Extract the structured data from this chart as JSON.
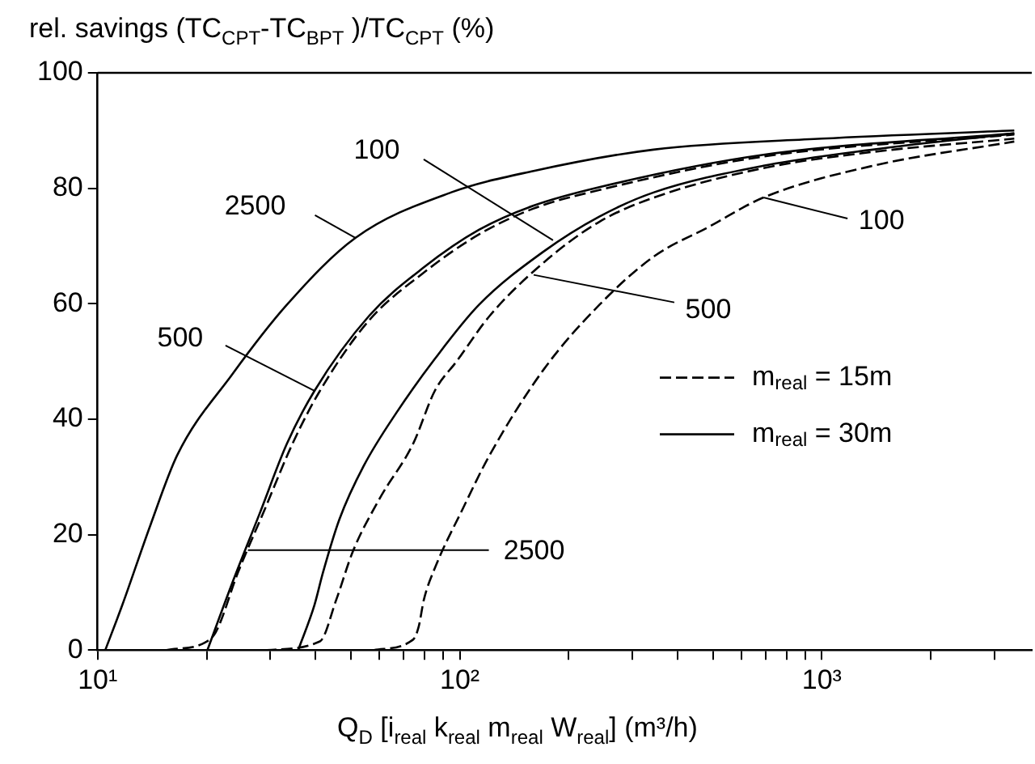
{
  "chart_data": {
    "type": "line",
    "ylabel": "rel. savings (TC$_{CPT}$-TC$_{BPT}$ )/TC$_{CPT}$ (%)",
    "xlabel": "Q$_{D}$ [i$_{real}$ k$_{real}$ m$_{real}$ W$_{real}$] (m³/h)",
    "log": "x",
    "xlim": [
      10,
      3800
    ],
    "xticks": [
      {
        "value": 10,
        "label": "10¹"
      },
      {
        "value": 20,
        "label": null
      },
      {
        "value": 30,
        "label": null
      },
      {
        "value": 40,
        "label": null
      },
      {
        "value": 50,
        "label": null
      },
      {
        "value": 60,
        "label": null
      },
      {
        "value": 70,
        "label": null
      },
      {
        "value": 80,
        "label": null
      },
      {
        "value": 90,
        "label": null
      },
      {
        "value": 100,
        "label": "10²"
      },
      {
        "value": 200,
        "label": null
      },
      {
        "value": 300,
        "label": null
      },
      {
        "value": 400,
        "label": null
      },
      {
        "value": 500,
        "label": null
      },
      {
        "value": 600,
        "label": null
      },
      {
        "value": 700,
        "label": null
      },
      {
        "value": 800,
        "label": null
      },
      {
        "value": 900,
        "label": null
      },
      {
        "value": 1000,
        "label": "10³"
      },
      {
        "value": 2000,
        "label": null
      },
      {
        "value": 3000,
        "label": null
      }
    ],
    "ylim": [
      0,
      100
    ],
    "yticks": [
      0,
      20,
      40,
      60,
      80,
      100
    ],
    "grid": false,
    "legend": "right",
    "marker": "none",
    "series": [
      {
        "name": "m$_{real}$ = 15m",
        "color": "#000000",
        "line_style": "dashed",
        "x": [
          15.5,
          19.8,
          21.2,
          24.4,
          29,
          34.5,
          41.1,
          56,
          80,
          113,
          160,
          243,
          690,
          3400
        ],
        "values": [
          0,
          1.3,
          3.1,
          13.4,
          24.5,
          35.7,
          44.9,
          57,
          65.5,
          72,
          76.5,
          79.7,
          85.5,
          89.3
        ]
      },
      {
        "color": "#000000",
        "line_style": "dashed",
        "x": [
          29,
          41.1,
          45.6,
          50.7,
          60.3,
          74.3,
          85.5,
          98,
          121,
          171,
          243,
          344,
          690,
          1384,
          3400
        ],
        "values": [
          0,
          1.5,
          8.7,
          17.1,
          26.4,
          35.7,
          45,
          50,
          57.9,
          67.2,
          74.2,
          78.4,
          83.5,
          86.3,
          88.6
        ]
      },
      {
        "color": "#000000",
        "line_style": "dashed",
        "x": [
          58,
          74.3,
          77,
          79.6,
          85.5,
          102,
          121,
          171,
          243,
          344,
          487,
          690,
          1384,
          3400
        ],
        "values": [
          0,
          1.8,
          4,
          8.7,
          14.3,
          24.5,
          33.8,
          48.7,
          59.8,
          68.2,
          73.3,
          78.4,
          83.9,
          88.1
        ]
      },
      {
        "name": "m$_{real}$ = 30m",
        "color": "#000000",
        "line_style": "solid",
        "x": [
          10.5,
          11.7,
          14,
          16.6,
          23.5,
          33.3,
          51.5,
          94.8,
          160,
          343,
          1000,
          3400
        ],
        "values": [
          0,
          7.8,
          21.7,
          33.8,
          47.7,
          59.8,
          71.4,
          79.3,
          83,
          86.7,
          88.6,
          90
        ]
      },
      {
        "color": "#000000",
        "line_style": "solid",
        "x": [
          20.1,
          23.5,
          28,
          33.3,
          39.7,
          56.2,
          79.6,
          113,
          160,
          243,
          690,
          3400
        ],
        "values": [
          0,
          11.5,
          23.6,
          35.7,
          44.9,
          57.9,
          66.3,
          72.8,
          77,
          80.2,
          85.8,
          89.5
        ]
      },
      {
        "color": "#000000",
        "line_style": "solid",
        "x": [
          35.8,
          39.7,
          41.9,
          46.5,
          54.3,
          67,
          85.5,
          113,
          171,
          243,
          344,
          690,
          1384,
          3400
        ],
        "values": [
          0,
          7.8,
          13.4,
          22.6,
          31.9,
          41.2,
          50.5,
          59.8,
          69.1,
          75.1,
          79.3,
          83.9,
          86.7,
          89.5
        ]
      }
    ],
    "annotations": [
      {
        "text": "100",
        "x": 181,
        "y": 71
      },
      {
        "text": "2500",
        "x": 51.5,
        "y": 71.4
      },
      {
        "text": "500",
        "x": 39.7,
        "y": 44.9
      },
      {
        "text": "2500",
        "x": 26,
        "y": 17.3
      },
      {
        "text": "500",
        "x": 160,
        "y": 65
      },
      {
        "text": "100",
        "x": 690,
        "y": 78.4
      }
    ]
  }
}
